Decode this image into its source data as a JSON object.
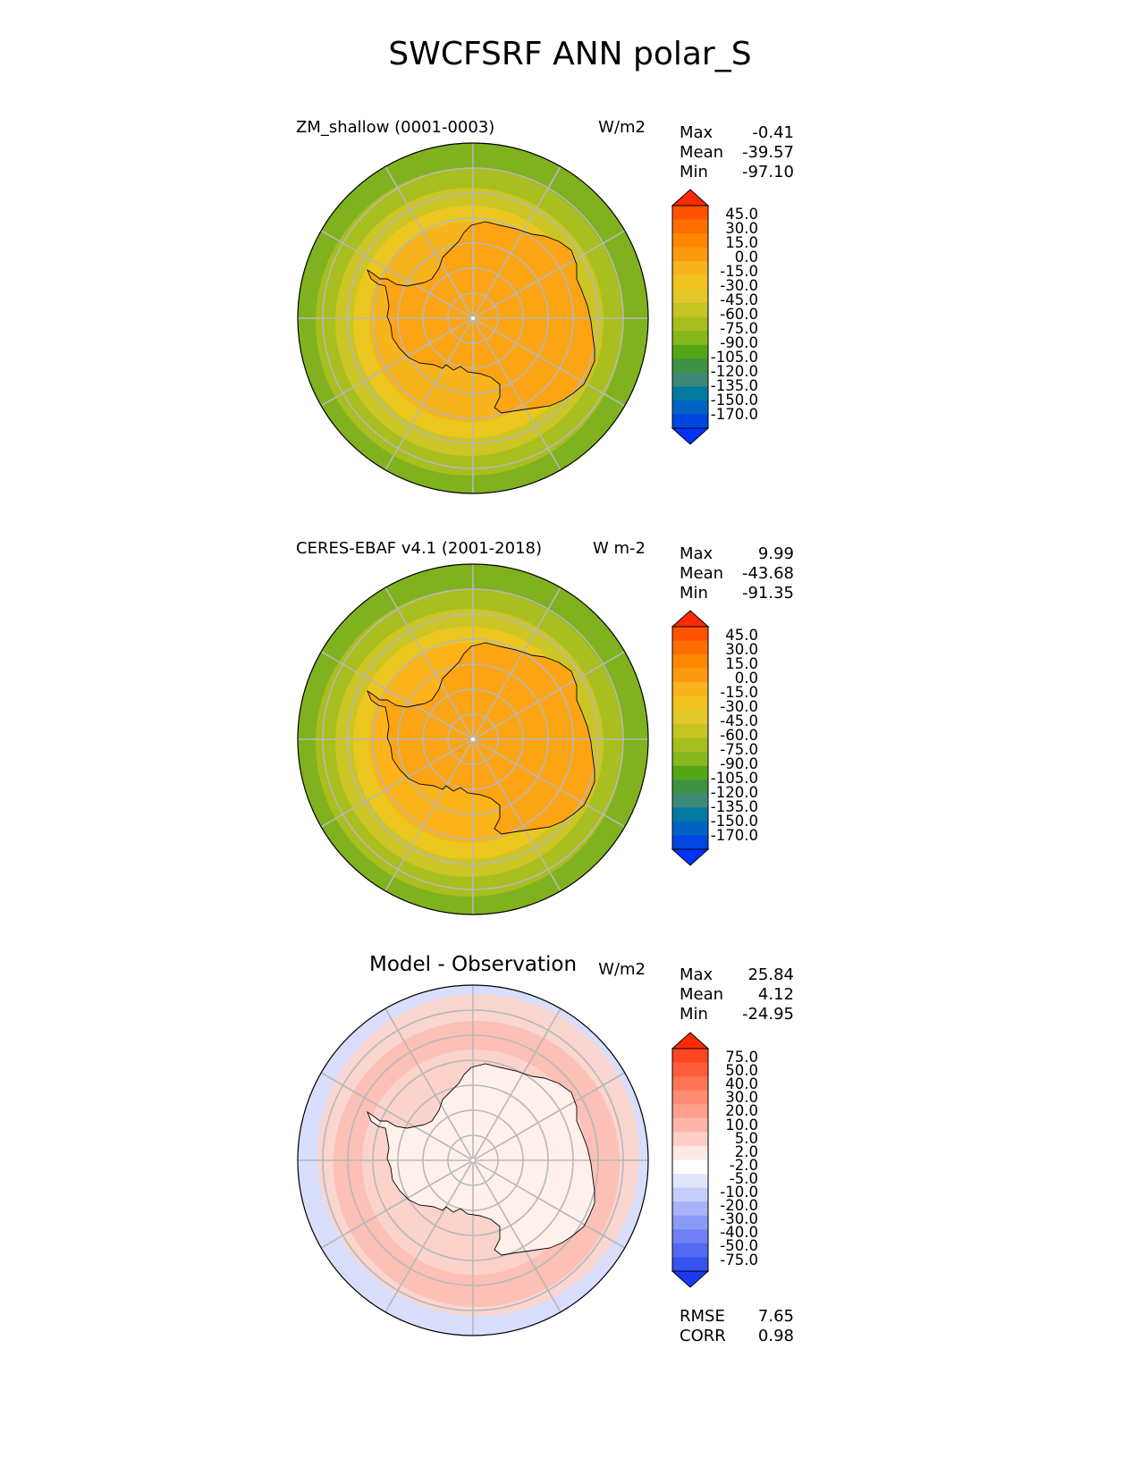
{
  "figure": {
    "title": "SWCFSRF ANN polar_S"
  },
  "panels": [
    {
      "id": "test",
      "title": "ZM_shallow (0001-0003)",
      "units": "W/m2",
      "stats": [
        {
          "label": "Max",
          "value": "-0.41"
        },
        {
          "label": "Mean",
          "value": "-39.57"
        },
        {
          "label": "Min",
          "value": "-97.10"
        }
      ],
      "colorbar": {
        "tick_labels": [
          "45.0",
          "30.0",
          "15.0",
          "0.0",
          "-15.0",
          "-30.0",
          "-45.0",
          "-60.0",
          "-75.0",
          "-90.0",
          "-105.0",
          "-120.0",
          "-135.0",
          "-150.0",
          "-170.0"
        ],
        "colors": [
          "#ff2a00",
          "#ff5200",
          "#ff6e00",
          "#ff8800",
          "#fc9b10",
          "#f7b41c",
          "#f2c31e",
          "#e2c82a",
          "#c5c423",
          "#a7be1e",
          "#86b81d",
          "#55a617",
          "#3e9242",
          "#3c8a76",
          "#017aa2",
          "#0063c3",
          "#0046e0",
          "#0033ff"
        ]
      }
    },
    {
      "id": "reference",
      "title": "CERES-EBAF v4.1 (2001-2018)",
      "units": "W m-2",
      "stats": [
        {
          "label": "Max",
          "value": "9.99"
        },
        {
          "label": "Mean",
          "value": "-43.68"
        },
        {
          "label": "Min",
          "value": "-91.35"
        }
      ],
      "colorbar": {
        "tick_labels": [
          "45.0",
          "30.0",
          "15.0",
          "0.0",
          "-15.0",
          "-30.0",
          "-45.0",
          "-60.0",
          "-75.0",
          "-90.0",
          "-105.0",
          "-120.0",
          "-135.0",
          "-150.0",
          "-170.0"
        ],
        "colors": [
          "#ff2a00",
          "#ff5200",
          "#ff6e00",
          "#ff8800",
          "#fc9b10",
          "#f7b41c",
          "#f2c31e",
          "#e2c82a",
          "#c5c423",
          "#a7be1e",
          "#86b81d",
          "#55a617",
          "#3e9242",
          "#3c8a76",
          "#017aa2",
          "#0063c3",
          "#0046e0",
          "#0033ff"
        ]
      }
    },
    {
      "id": "diff",
      "title": "Model - Observation",
      "units": "W/m2",
      "stats": [
        {
          "label": "Max",
          "value": "25.84"
        },
        {
          "label": "Mean",
          "value": "4.12"
        },
        {
          "label": "Min",
          "value": "-24.95"
        }
      ],
      "metrics": [
        {
          "label": "RMSE",
          "value": "7.65"
        },
        {
          "label": "CORR",
          "value": "0.98"
        }
      ],
      "colorbar": {
        "tick_labels": [
          "75.0",
          "50.0",
          "40.0",
          "30.0",
          "20.0",
          "10.0",
          "5.0",
          "2.0",
          "-2.0",
          "-5.0",
          "-10.0",
          "-20.0",
          "-30.0",
          "-40.0",
          "-50.0",
          "-75.0"
        ],
        "colors": [
          "#ff2a00",
          "#ff4620",
          "#ff5c3a",
          "#ff7356",
          "#ff8b72",
          "#ffa08e",
          "#ffb6aa",
          "#ffcfc7",
          "#ffe9e6",
          "#ffffff",
          "#e2e6fd",
          "#c6cdfb",
          "#a8b3f9",
          "#8c9af7",
          "#7081f5",
          "#5369f2",
          "#3752f0",
          "#1b3af0"
        ]
      }
    }
  ],
  "colors": {
    "test_field": [
      "#7fb21e",
      "#a9be1f",
      "#cbc526",
      "#ecc71f",
      "#f7b41c",
      "#fca413"
    ],
    "reference_field": [
      "#7fb21e",
      "#a9be1f",
      "#cbc526",
      "#ecc71f",
      "#fcb41a",
      "#fca413"
    ],
    "diff_field": [
      "#d8defb",
      "#f9d6d0",
      "#fcc0b6",
      "#fbd3cb",
      "#fff0ec",
      "#ffe3de"
    ],
    "grid": "#b8b8b8",
    "coast": "#000000"
  }
}
